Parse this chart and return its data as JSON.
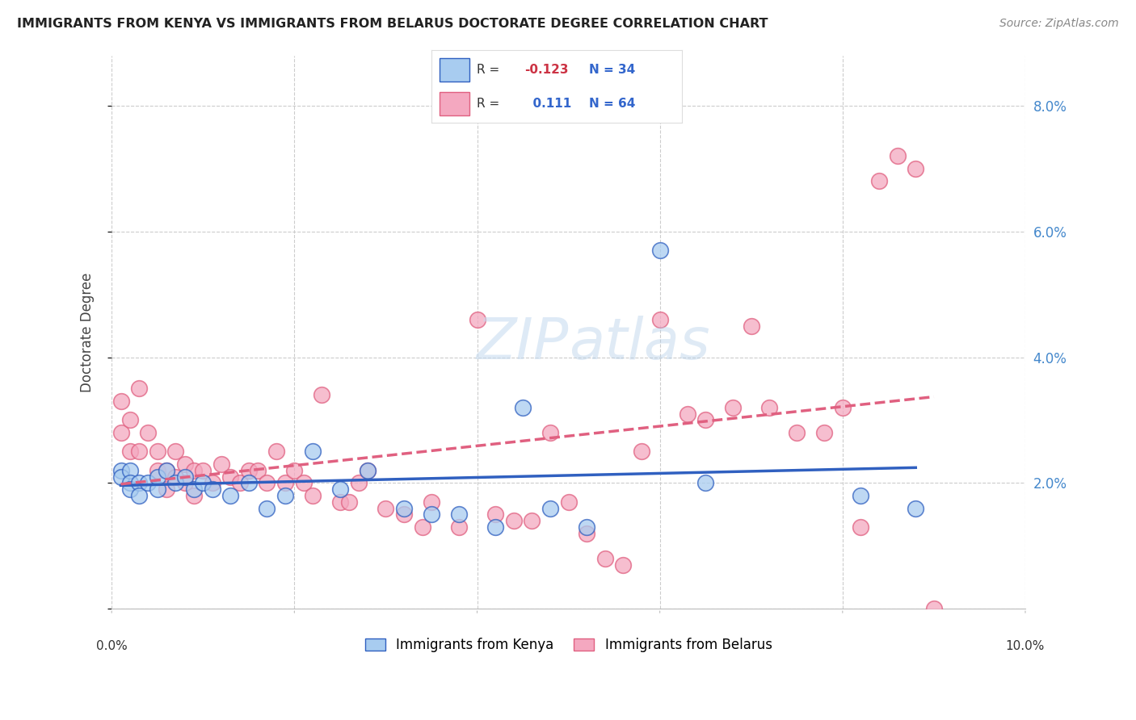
{
  "title": "IMMIGRANTS FROM KENYA VS IMMIGRANTS FROM BELARUS DOCTORATE DEGREE CORRELATION CHART",
  "source": "Source: ZipAtlas.com",
  "ylabel": "Doctorate Degree",
  "legend_label1": "Immigrants from Kenya",
  "legend_label2": "Immigrants from Belarus",
  "R1": -0.123,
  "N1": 34,
  "R2": 0.111,
  "N2": 64,
  "color_kenya": "#A8CCF0",
  "color_belarus": "#F4A8C0",
  "color_kenya_line": "#3060C0",
  "color_belarus_line": "#E06080",
  "x_range": [
    0.0,
    0.1
  ],
  "y_range": [
    0.0,
    0.088
  ],
  "kenya_x": [
    0.001,
    0.001,
    0.002,
    0.002,
    0.002,
    0.003,
    0.003,
    0.004,
    0.005,
    0.005,
    0.006,
    0.007,
    0.008,
    0.009,
    0.01,
    0.011,
    0.013,
    0.015,
    0.017,
    0.019,
    0.022,
    0.025,
    0.028,
    0.032,
    0.035,
    0.038,
    0.042,
    0.045,
    0.048,
    0.052,
    0.06,
    0.065,
    0.082,
    0.088
  ],
  "kenya_y": [
    0.022,
    0.021,
    0.022,
    0.02,
    0.019,
    0.02,
    0.018,
    0.02,
    0.019,
    0.021,
    0.022,
    0.02,
    0.021,
    0.019,
    0.02,
    0.019,
    0.018,
    0.02,
    0.016,
    0.018,
    0.025,
    0.019,
    0.022,
    0.016,
    0.015,
    0.015,
    0.013,
    0.032,
    0.016,
    0.013,
    0.057,
    0.02,
    0.018,
    0.016
  ],
  "belarus_x": [
    0.001,
    0.001,
    0.002,
    0.002,
    0.003,
    0.003,
    0.004,
    0.005,
    0.005,
    0.006,
    0.006,
    0.007,
    0.007,
    0.008,
    0.008,
    0.009,
    0.009,
    0.01,
    0.011,
    0.012,
    0.013,
    0.014,
    0.015,
    0.016,
    0.017,
    0.018,
    0.019,
    0.02,
    0.021,
    0.022,
    0.023,
    0.025,
    0.026,
    0.027,
    0.028,
    0.03,
    0.032,
    0.034,
    0.035,
    0.038,
    0.04,
    0.042,
    0.044,
    0.046,
    0.048,
    0.05,
    0.052,
    0.054,
    0.056,
    0.058,
    0.06,
    0.063,
    0.065,
    0.068,
    0.07,
    0.072,
    0.075,
    0.078,
    0.08,
    0.082,
    0.084,
    0.086,
    0.088,
    0.09
  ],
  "belarus_y": [
    0.033,
    0.028,
    0.03,
    0.025,
    0.035,
    0.025,
    0.028,
    0.025,
    0.022,
    0.022,
    0.019,
    0.025,
    0.021,
    0.02,
    0.023,
    0.022,
    0.018,
    0.022,
    0.02,
    0.023,
    0.021,
    0.02,
    0.022,
    0.022,
    0.02,
    0.025,
    0.02,
    0.022,
    0.02,
    0.018,
    0.034,
    0.017,
    0.017,
    0.02,
    0.022,
    0.016,
    0.015,
    0.013,
    0.017,
    0.013,
    0.046,
    0.015,
    0.014,
    0.014,
    0.028,
    0.017,
    0.012,
    0.008,
    0.007,
    0.025,
    0.046,
    0.031,
    0.03,
    0.032,
    0.045,
    0.032,
    0.028,
    0.028,
    0.032,
    0.013,
    0.068,
    0.072,
    0.07,
    0.0
  ]
}
